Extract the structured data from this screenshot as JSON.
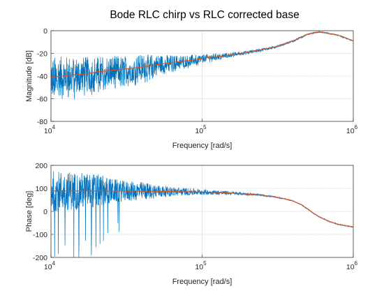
{
  "chart_data": {
    "title": "Bode RLC chirp vs RLC corrected base",
    "series_colors": {
      "measured": "#0072BD",
      "model": "#D95319"
    },
    "subplots": [
      {
        "type": "line",
        "xscale": "log",
        "xlim": [
          10000,
          1000000
        ],
        "ylim": [
          -80,
          0
        ],
        "xlabel": "Frequency [rad/s]",
        "ylabel": "Magnitude [dB]",
        "xtick_labels": [
          {
            "base": "10",
            "exp": "4"
          },
          {
            "base": "10",
            "exp": "5"
          },
          {
            "base": "10",
            "exp": "6"
          }
        ],
        "yticks": [
          -80,
          -60,
          -40,
          -20,
          0
        ],
        "grid": true,
        "series": [
          {
            "role": "measured (noisy chirp)",
            "x": [
              10000,
              13000,
              17000,
              20000,
              25000,
              30000,
              40000,
              50000,
              60000,
              80000,
              100000,
              150000,
              200000,
              300000,
              400000,
              500000,
              600000,
              800000,
              1000000
            ],
            "y": [
              -41,
              -39.5,
              -38,
              -36.5,
              -35,
              -34,
              -32,
              -30,
              -28.5,
              -26.5,
              -24.5,
              -21.5,
              -19,
              -14.5,
              -9,
              -3,
              -1,
              -4,
              -9
            ],
            "noise_spread": [
              18,
              17,
              15,
              14,
              13,
              12,
              11,
              9,
              7,
              5,
              3.5,
              2,
              1.5,
              1,
              0.8,
              0.6,
              0.5,
              0.5,
              0.4
            ]
          },
          {
            "role": "model (RLC corrected)",
            "x": [
              10000,
              13000,
              17000,
              20000,
              25000,
              30000,
              40000,
              50000,
              60000,
              80000,
              100000,
              150000,
              200000,
              300000,
              400000,
              500000,
              600000,
              800000,
              1000000
            ],
            "y": [
              -41,
              -39.5,
              -38,
              -36.5,
              -35,
              -34,
              -32,
              -30,
              -28.5,
              -26.5,
              -24.5,
              -21.5,
              -19,
              -14.5,
              -9,
              -3,
              -1,
              -4,
              -9
            ]
          }
        ]
      },
      {
        "type": "line",
        "xscale": "log",
        "xlim": [
          10000,
          1000000
        ],
        "ylim": [
          -200,
          200
        ],
        "xlabel": "Frequency [rad/s]",
        "ylabel": "Phase [deg]",
        "xtick_labels": [
          {
            "base": "10",
            "exp": "4"
          },
          {
            "base": "10",
            "exp": "5"
          },
          {
            "base": "10",
            "exp": "6"
          }
        ],
        "yticks": [
          -200,
          -100,
          0,
          100,
          200
        ],
        "grid": true,
        "series": [
          {
            "role": "measured (noisy chirp)",
            "x": [
              10000,
              13000,
              17000,
              20000,
              25000,
              30000,
              40000,
              50000,
              60000,
              80000,
              100000,
              150000,
              200000,
              250000,
              300000,
              350000,
              400000,
              450000,
              500000,
              550000,
              600000,
              700000,
              800000,
              1000000
            ],
            "y": [
              89,
              89,
              89,
              89,
              88.5,
              88,
              87.5,
              87,
              86,
              85,
              84,
              80,
              75,
              70,
              63,
              55,
              45,
              30,
              10,
              -10,
              -25,
              -45,
              -57,
              -68
            ],
            "noise_spread": [
              90,
              85,
              80,
              75,
              55,
              45,
              40,
              30,
              22,
              16,
              12,
              8,
              6,
              4,
              3,
              2,
              2,
              2,
              2,
              2,
              2,
              2,
              2,
              2
            ]
          },
          {
            "role": "model (RLC corrected)",
            "x": [
              10000,
              13000,
              17000,
              20000,
              25000,
              30000,
              40000,
              50000,
              60000,
              80000,
              100000,
              150000,
              200000,
              250000,
              300000,
              350000,
              400000,
              450000,
              500000,
              550000,
              600000,
              700000,
              800000,
              1000000
            ],
            "y": [
              89,
              89,
              89,
              89,
              88.5,
              88,
              87.5,
              87,
              86,
              85,
              84,
              80,
              75,
              70,
              63,
              55,
              45,
              30,
              10,
              -10,
              -25,
              -45,
              -57,
              -68
            ]
          }
        ]
      }
    ]
  }
}
